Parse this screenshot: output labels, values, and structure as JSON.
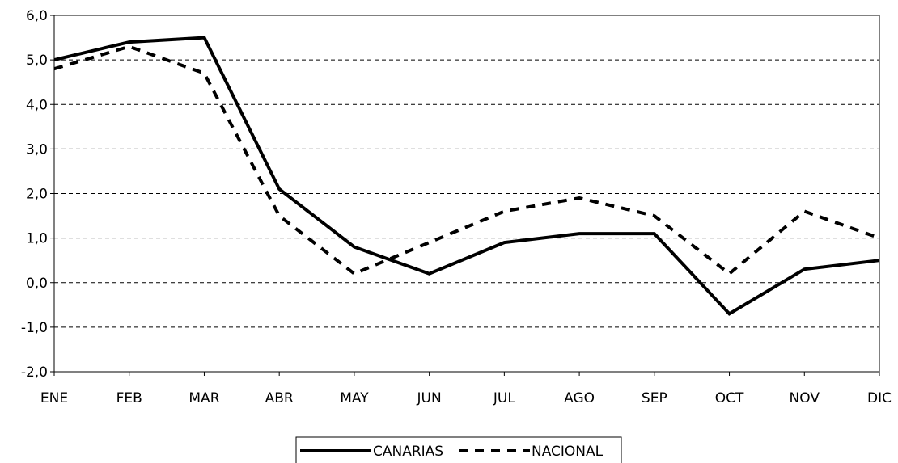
{
  "chart_data": {
    "type": "line",
    "categories": [
      "ENE",
      "FEB",
      "MAR",
      "ABR",
      "MAY",
      "JUN",
      "JUL",
      "AGO",
      "SEP",
      "OCT",
      "NOV",
      "DIC"
    ],
    "series": [
      {
        "name": "CANARIAS",
        "values": [
          5.0,
          5.4,
          5.5,
          2.1,
          0.8,
          0.2,
          0.9,
          1.1,
          1.1,
          -0.7,
          0.3,
          0.5
        ],
        "style": "solid",
        "color": "#000000"
      },
      {
        "name": "NACIONAL",
        "values": [
          4.8,
          5.3,
          4.7,
          1.5,
          0.2,
          0.9,
          1.6,
          1.9,
          1.5,
          0.2,
          1.6,
          1.0
        ],
        "style": "dashed",
        "color": "#000000"
      }
    ],
    "ylim": [
      -2,
      6
    ],
    "yticks": [
      "-2,0",
      "-1,0",
      "0,0",
      "1,0",
      "2,0",
      "3,0",
      "4,0",
      "5,0",
      "6,0"
    ],
    "grid": "horizontal dashed",
    "legend": "bottom-center",
    "title": "",
    "xlabel": "",
    "ylabel": ""
  }
}
